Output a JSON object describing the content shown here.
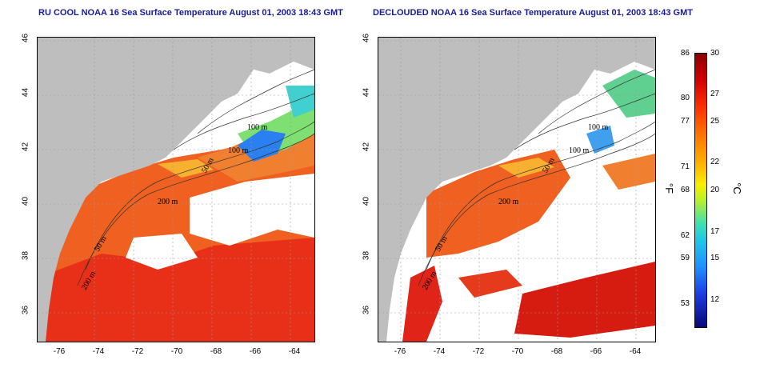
{
  "titles": {
    "left": "RU COOL NOAA 16 Sea Surface Temperature August 01, 2003 18:43 GMT",
    "right": "DECLOUDED NOAA 16 Sea Surface Temperature August 01, 2003 18:43 GMT"
  },
  "axes": {
    "lat_ticks": [
      "46",
      "44",
      "42",
      "40",
      "38",
      "36"
    ],
    "lon_ticks": [
      "-76",
      "-74",
      "-72",
      "-70",
      "-68",
      "-66",
      "-64"
    ]
  },
  "contour_labels": {
    "left": [
      "100 m",
      "100 m",
      "200 m",
      "50 m",
      "50 m",
      "200 m"
    ],
    "right": [
      "100 m",
      "100 m",
      "200 m",
      "50 m",
      "50 m",
      "200 m"
    ]
  },
  "colorbar": {
    "fahrenheit_ticks": [
      "86",
      "80",
      "77",
      "71",
      "68",
      "62",
      "59",
      "53"
    ],
    "celsius_ticks": [
      "30",
      "27",
      "25",
      "22",
      "20",
      "17",
      "15",
      "12"
    ],
    "unit_f": "°F",
    "unit_c": "°C"
  },
  "colors": {
    "title": "#1a1a9c",
    "land": "#bebebe",
    "no_data": "#ffffff",
    "warm": "#e83a1a",
    "hot": "#d61c10",
    "cool": "#1e90ff"
  }
}
